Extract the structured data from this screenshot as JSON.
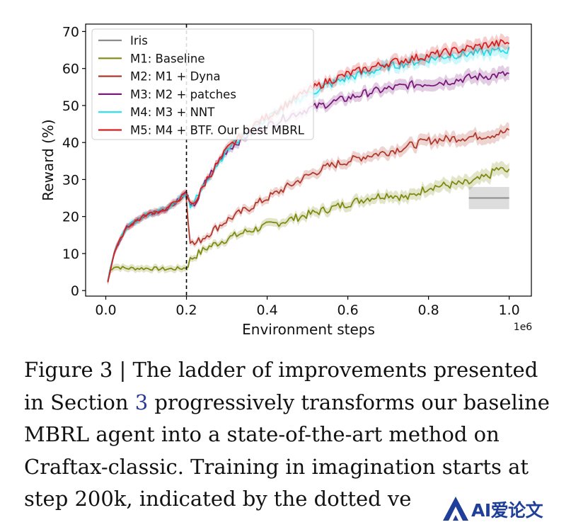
{
  "chart_data": {
    "type": "line",
    "xlabel": "Environment steps",
    "x_offset_label": "1e6",
    "ylabel": "Reward (%)",
    "xlim": [
      -0.05,
      1.055
    ],
    "ylim": [
      -1.5,
      72
    ],
    "x_ticks": [
      "0.0",
      "0.2",
      "0.4",
      "0.6",
      "0.8",
      "1.0"
    ],
    "y_ticks": [
      "0",
      "10",
      "20",
      "30",
      "40",
      "50",
      "60",
      "70"
    ],
    "grid": false,
    "legend_position": "top-left",
    "vline": {
      "x": 0.2,
      "style": "dashed",
      "color": "#000000"
    },
    "series": [
      {
        "name": "Iris",
        "color": "#8c8c8c",
        "x": [
          0.9,
          1.0
        ],
        "y": [
          25,
          25
        ],
        "band": [
          [
            22,
            28
          ],
          [
            22,
            28
          ]
        ]
      },
      {
        "name": "M1: Baseline",
        "color": "#7f8a10",
        "x": [
          0.005,
          0.01,
          0.02,
          0.05,
          0.1,
          0.15,
          0.19,
          0.2,
          0.21,
          0.25,
          0.3,
          0.35,
          0.4,
          0.45,
          0.5,
          0.55,
          0.6,
          0.65,
          0.7,
          0.75,
          0.8,
          0.85,
          0.9,
          0.95,
          0.97,
          1.0
        ],
        "y": [
          2.5,
          5.5,
          6.5,
          6,
          6,
          5.8,
          6,
          6.2,
          8.5,
          11.5,
          14,
          16,
          17.5,
          19,
          20.5,
          22,
          23.5,
          25,
          26,
          25,
          28,
          28.5,
          29,
          31,
          33,
          32
        ]
      },
      {
        "name": "M2: M1 + Dyna",
        "color": "#b03a2e",
        "x": [
          0.005,
          0.02,
          0.05,
          0.1,
          0.15,
          0.19,
          0.2,
          0.205,
          0.21,
          0.22,
          0.25,
          0.3,
          0.35,
          0.4,
          0.45,
          0.5,
          0.55,
          0.6,
          0.65,
          0.7,
          0.75,
          0.8,
          0.85,
          0.9,
          0.95,
          1.0
        ],
        "y": [
          2.5,
          10,
          17,
          20.5,
          22,
          25,
          26.5,
          18,
          13,
          12.5,
          15,
          19,
          22,
          25,
          28,
          31,
          33.5,
          35,
          36.5,
          37.5,
          39,
          40.5,
          41,
          41.5,
          42,
          43
        ]
      },
      {
        "name": "M3: M2 + patches",
        "color": "#7a1a7a",
        "x": [
          0.005,
          0.02,
          0.05,
          0.1,
          0.15,
          0.2,
          0.21,
          0.23,
          0.25,
          0.3,
          0.35,
          0.4,
          0.45,
          0.5,
          0.55,
          0.6,
          0.65,
          0.7,
          0.75,
          0.8,
          0.85,
          0.9,
          0.95,
          1.0
        ],
        "y": [
          2.5,
          10,
          17,
          20.5,
          22,
          26.5,
          22,
          25,
          30,
          38,
          42,
          44.5,
          47,
          49,
          50.5,
          52,
          53.5,
          54.5,
          55.5,
          56,
          56.5,
          57.5,
          58,
          58.5
        ]
      },
      {
        "name": "M4: M3 + NNT",
        "color": "#22e0ee",
        "x": [
          0.005,
          0.02,
          0.05,
          0.1,
          0.15,
          0.2,
          0.21,
          0.23,
          0.25,
          0.3,
          0.35,
          0.4,
          0.45,
          0.5,
          0.55,
          0.6,
          0.65,
          0.7,
          0.75,
          0.8,
          0.85,
          0.9,
          0.95,
          1.0
        ],
        "y": [
          2.5,
          10,
          17,
          20.5,
          22,
          26.5,
          23,
          25.5,
          30,
          38,
          43,
          46.5,
          50,
          53,
          55.5,
          57.5,
          59,
          60.5,
          61.5,
          62.5,
          63.5,
          64,
          64.5,
          65
        ]
      },
      {
        "name": "M5: M4 + BTF. Our best MBRL",
        "color": "#d81f1f",
        "x": [
          0.005,
          0.02,
          0.05,
          0.1,
          0.15,
          0.2,
          0.21,
          0.23,
          0.25,
          0.3,
          0.35,
          0.4,
          0.45,
          0.5,
          0.55,
          0.6,
          0.65,
          0.7,
          0.75,
          0.8,
          0.85,
          0.9,
          0.95,
          1.0
        ],
        "y": [
          2.5,
          10,
          17,
          20.5,
          22,
          26.5,
          23,
          25.5,
          30,
          38,
          43.5,
          47,
          50.5,
          54,
          56.5,
          58.5,
          60,
          61.5,
          62.5,
          63.5,
          64.5,
          65.5,
          66.5,
          67
        ]
      }
    ]
  },
  "caption": {
    "line1": "Figure 3 | The ladder of improvements presented",
    "line2_pre": "in Section ",
    "line2_ref": "3",
    "line2_post": " progressively transforms our baseline",
    "line3": "MBRL agent into a state-of-the-art method on",
    "line4": "Craftax-classic. Training in imagination starts at",
    "line5": "step 200k, indicated by the dotted ve"
  },
  "watermark": {
    "text": "AI爱论文"
  }
}
